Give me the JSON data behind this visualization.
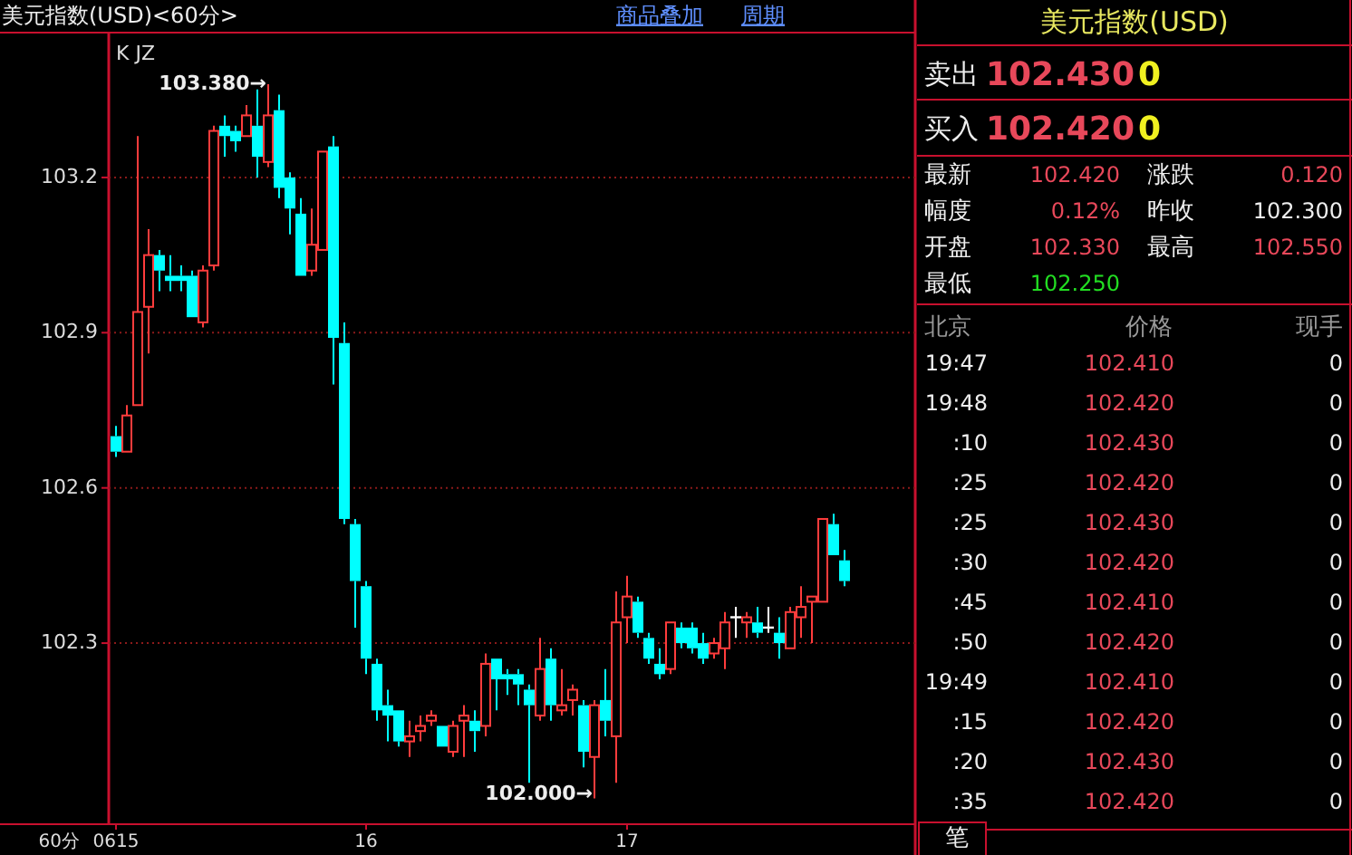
{
  "chart_data": [
    {
      "type": "candlestick",
      "title": "美元指数(USD)<60分>",
      "categories": [
        "0615",
        null,
        null,
        null,
        null,
        null,
        null,
        null,
        null,
        null,
        null,
        null,
        null,
        null,
        null,
        null,
        null,
        null,
        null,
        null,
        null,
        null,
        null,
        "16",
        null,
        null,
        null,
        null,
        null,
        null,
        null,
        null,
        null,
        null,
        null,
        null,
        null,
        null,
        null,
        null,
        null,
        null,
        null,
        null,
        null,
        null,
        null,
        "17",
        null,
        null,
        null,
        null,
        null,
        null,
        null,
        null,
        null,
        null,
        null,
        null,
        null,
        null,
        null,
        null,
        null,
        null,
        null,
        null
      ],
      "ohlc": [
        [
          102.7,
          102.72,
          102.66,
          102.67
        ],
        [
          102.67,
          102.76,
          102.67,
          102.74
        ],
        [
          102.76,
          103.28,
          102.76,
          102.94
        ],
        [
          102.95,
          103.1,
          102.86,
          103.05
        ],
        [
          103.05,
          103.06,
          102.98,
          103.02
        ],
        [
          103.01,
          103.05,
          102.98,
          103.0
        ],
        [
          103.01,
          103.03,
          102.98,
          103.0
        ],
        [
          103.01,
          103.02,
          102.93,
          102.93
        ],
        [
          102.92,
          103.03,
          102.91,
          103.02
        ],
        [
          103.03,
          103.3,
          103.02,
          103.29
        ],
        [
          103.3,
          103.32,
          103.24,
          103.28
        ],
        [
          103.29,
          103.3,
          103.25,
          103.27
        ],
        [
          103.28,
          103.34,
          103.28,
          103.32
        ],
        [
          103.3,
          103.37,
          103.2,
          103.24
        ],
        [
          103.23,
          103.38,
          103.22,
          103.32
        ],
        [
          103.33,
          103.36,
          103.16,
          103.18
        ],
        [
          103.2,
          103.21,
          103.09,
          103.14
        ],
        [
          103.13,
          103.16,
          103.01,
          103.01
        ],
        [
          103.02,
          103.14,
          103.01,
          103.07
        ],
        [
          103.06,
          103.25,
          103.06,
          103.25
        ],
        [
          103.26,
          103.28,
          102.8,
          102.89
        ],
        [
          102.88,
          102.92,
          102.53,
          102.54
        ],
        [
          102.53,
          102.54,
          102.33,
          102.42
        ],
        [
          102.41,
          102.42,
          102.24,
          102.27
        ],
        [
          102.26,
          102.27,
          102.15,
          102.17
        ],
        [
          102.18,
          102.21,
          102.11,
          102.16
        ],
        [
          102.17,
          102.17,
          102.1,
          102.11
        ],
        [
          102.11,
          102.15,
          102.08,
          102.12
        ],
        [
          102.13,
          102.16,
          102.11,
          102.14
        ],
        [
          102.15,
          102.17,
          102.14,
          102.16
        ],
        [
          102.14,
          102.14,
          102.1,
          102.1
        ],
        [
          102.09,
          102.15,
          102.08,
          102.14
        ],
        [
          102.15,
          102.18,
          102.08,
          102.16
        ],
        [
          102.15,
          102.17,
          102.09,
          102.13
        ],
        [
          102.14,
          102.28,
          102.12,
          102.26
        ],
        [
          102.27,
          102.27,
          102.17,
          102.23
        ],
        [
          102.24,
          102.25,
          102.2,
          102.23
        ],
        [
          102.24,
          102.25,
          102.18,
          102.22
        ],
        [
          102.21,
          102.22,
          102.03,
          102.18
        ],
        [
          102.16,
          102.31,
          102.15,
          102.25
        ],
        [
          102.27,
          102.29,
          102.15,
          102.18
        ],
        [
          102.17,
          102.25,
          102.16,
          102.18
        ],
        [
          102.19,
          102.22,
          102.16,
          102.21
        ],
        [
          102.18,
          102.19,
          102.06,
          102.09
        ],
        [
          102.08,
          102.19,
          102.0,
          102.18
        ],
        [
          102.19,
          102.25,
          102.12,
          102.15
        ],
        [
          102.12,
          102.4,
          102.03,
          102.34
        ],
        [
          102.35,
          102.43,
          102.3,
          102.39
        ],
        [
          102.38,
          102.39,
          102.31,
          102.32
        ],
        [
          102.31,
          102.32,
          102.26,
          102.27
        ],
        [
          102.26,
          102.29,
          102.23,
          102.24
        ],
        [
          102.25,
          102.34,
          102.24,
          102.34
        ],
        [
          102.33,
          102.34,
          102.29,
          102.3
        ],
        [
          102.33,
          102.34,
          102.28,
          102.29
        ],
        [
          102.3,
          102.32,
          102.26,
          102.27
        ],
        [
          102.28,
          102.31,
          102.27,
          102.3
        ],
        [
          102.29,
          102.36,
          102.25,
          102.34
        ],
        [
          102.35,
          102.37,
          102.31,
          102.35
        ],
        [
          102.34,
          102.36,
          102.31,
          102.35
        ],
        [
          102.34,
          102.37,
          102.31,
          102.32
        ],
        [
          102.33,
          102.37,
          102.32,
          102.33
        ],
        [
          102.32,
          102.35,
          102.27,
          102.3
        ],
        [
          102.29,
          102.37,
          102.29,
          102.36
        ],
        [
          102.35,
          102.41,
          102.31,
          102.37
        ],
        [
          102.38,
          102.39,
          102.3,
          102.39
        ],
        [
          102.38,
          102.54,
          102.38,
          102.54
        ],
        [
          102.53,
          102.55,
          102.47,
          102.47
        ],
        [
          102.46,
          102.48,
          102.41,
          102.42
        ]
      ],
      "colors": [
        "#00ffff",
        "#ff3c3c",
        "#ff3c3c",
        "#ff3c3c",
        "#00ffff",
        "#00ffff",
        "#00ffff",
        "#00ffff",
        "#ff3c3c",
        "#ff3c3c",
        "#00ffff",
        "#00ffff",
        "#ff3c3c",
        "#00ffff",
        "#ff3c3c",
        "#00ffff",
        "#00ffff",
        "#00ffff",
        "#ff3c3c",
        "#ff3c3c",
        "#00ffff",
        "#00ffff",
        "#00ffff",
        "#00ffff",
        "#00ffff",
        "#00ffff",
        "#00ffff",
        "#ff3c3c",
        "#ff3c3c",
        "#ff3c3c",
        "#00ffff",
        "#ff3c3c",
        "#ff3c3c",
        "#00ffff",
        "#ff3c3c",
        "#00ffff",
        "#00ffff",
        "#00ffff",
        "#00ffff",
        "#ff3c3c",
        "#00ffff",
        "#ff3c3c",
        "#ff3c3c",
        "#00ffff",
        "#ff3c3c",
        "#00ffff",
        "#ff3c3c",
        "#ff3c3c",
        "#00ffff",
        "#00ffff",
        "#00ffff",
        "#ff3c3c",
        "#00ffff",
        "#00ffff",
        "#00ffff",
        "#ff3c3c",
        "#ff3c3c",
        "#ffffff",
        "#ff3c3c",
        "#00ffff",
        "#ffffff",
        "#00ffff",
        "#ff3c3c",
        "#ff3c3c",
        "#ff3c3c",
        "#ff3c3c",
        "#00ffff",
        "#00ffff"
      ],
      "ylim": [
        101.95,
        103.48
      ],
      "yticks": [
        102.3,
        102.6,
        102.9,
        103.2
      ],
      "grid": "y",
      "annotations": [
        "K JZ",
        "60分",
        "商品叠加",
        "周期",
        "103.380→",
        "102.000→"
      ]
    },
    {
      "type": "other",
      "title": "美元指数(USD)",
      "annotations": [
        "卖出",
        "102.430",
        "0",
        "买入",
        "102.420",
        "0",
        "最新",
        "102.420",
        "涨跌",
        "0.120",
        "幅度",
        "0.12%",
        "昨收",
        "102.300",
        "开盘",
        "102.330",
        "最高",
        "102.550",
        "最低",
        "102.250",
        "北京",
        "价格",
        "现手",
        "19:47",
        "102.410",
        "0",
        "19:48",
        "102.420",
        "0",
        ":10",
        "102.430",
        "0",
        ":25",
        "102.420",
        "0",
        ":25",
        "102.430",
        "0",
        ":30",
        "102.420",
        "0",
        ":45",
        "102.410",
        "0",
        ":50",
        "102.420",
        "0",
        "19:49",
        "102.410",
        "0",
        ":15",
        "102.420",
        "0",
        ":20",
        "102.430",
        "0",
        ":35",
        "102.420",
        "0",
        "笔"
      ]
    }
  ]
}
